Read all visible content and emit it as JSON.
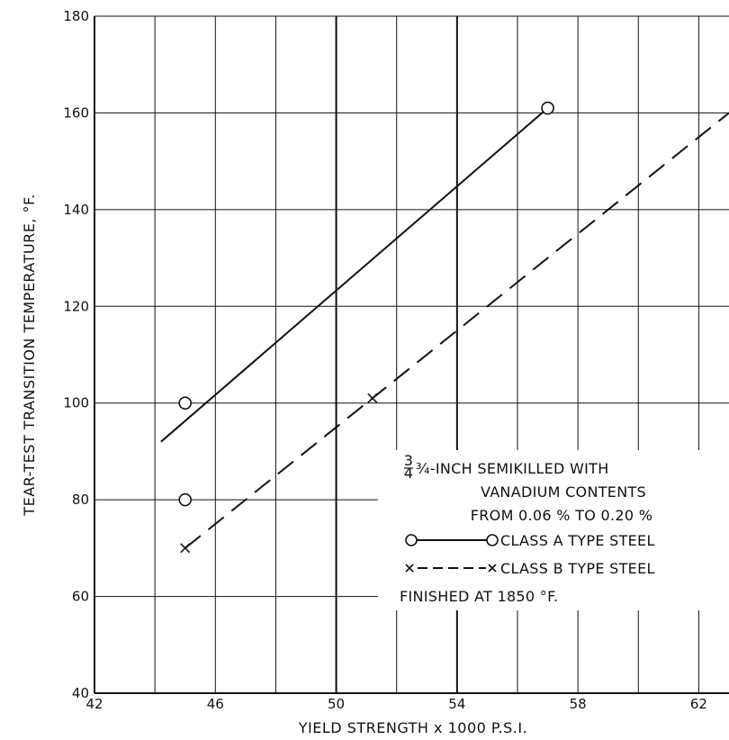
{
  "chart_data": {
    "type": "line",
    "title": "",
    "xlabel": "YIELD STRENGTH x 1000 P.S.I.",
    "ylabel": "TEAR-TEST TRANSITION TEMPERATURE, °F.",
    "xlim": [
      42,
      63
    ],
    "ylim": [
      40,
      180
    ],
    "x_ticks": [
      42,
      46,
      50,
      54,
      58,
      62
    ],
    "y_ticks": [
      40,
      60,
      80,
      100,
      120,
      140,
      160,
      180
    ],
    "grid": true,
    "legend": {
      "placement": "lower-right",
      "lines": [
        "¾-INCH SEMIKILLED WITH",
        "VANADIUM CONTENTS",
        "FROM 0.06 % TO 0.20 %"
      ],
      "footer": "FINISHED AT 1850 °F."
    },
    "series": [
      {
        "name": "CLASS A TYPE STEEL",
        "marker": "circle",
        "line_style": "solid",
        "points": [
          [
            45,
            100
          ],
          [
            45,
            80
          ],
          [
            57,
            161
          ]
        ],
        "fit_line": [
          [
            44.2,
            92
          ],
          [
            57,
            161
          ]
        ]
      },
      {
        "name": "CLASS B TYPE STEEL",
        "marker": "x",
        "line_style": "dashed",
        "points": [
          [
            51.2,
            101
          ],
          [
            45,
            70
          ]
        ],
        "fit_line": [
          [
            45,
            70
          ],
          [
            63,
            160
          ]
        ]
      }
    ]
  }
}
